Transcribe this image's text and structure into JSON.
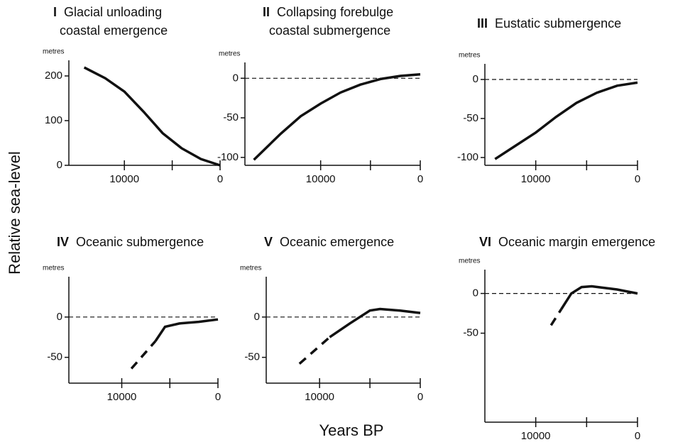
{
  "xlabel": "Years BP",
  "ylabel": "Relative sea-level",
  "chart_data": [
    {
      "type": "line",
      "numeral": "I",
      "title": [
        "Glacial unloading",
        "coastal emergence"
      ],
      "unit": "metres",
      "xlim": [
        15800,
        0
      ],
      "xticks": [
        10000,
        0
      ],
      "minor_xticks": [
        5000
      ],
      "ylim": [
        0,
        235
      ],
      "yticks": [
        0,
        100,
        200
      ],
      "zero_line": false,
      "segments": [
        {
          "style": "solid",
          "x": [
            14200,
            12000,
            10000,
            8000,
            6000,
            4000,
            2000,
            0
          ],
          "values": [
            219,
            195,
            165,
            120,
            72,
            38,
            14,
            0
          ]
        }
      ]
    },
    {
      "type": "line",
      "numeral": "II",
      "title": [
        "Collapsing forebulge",
        "coastal submergence"
      ],
      "unit": "metres",
      "xlim": [
        17600,
        0
      ],
      "xticks": [
        10000,
        0
      ],
      "minor_xticks": [
        5000
      ],
      "ylim": [
        -110,
        20
      ],
      "yticks": [
        0,
        -50,
        -100
      ],
      "zero_line": true,
      "segments": [
        {
          "style": "solid",
          "x": [
            16700,
            14000,
            12000,
            10000,
            8000,
            6000,
            4000,
            2000,
            0
          ],
          "values": [
            -103,
            -70,
            -48,
            -32,
            -18,
            -8,
            -1,
            3,
            5
          ]
        }
      ]
    },
    {
      "type": "line",
      "numeral": "III",
      "title": [
        "Eustatic submergence"
      ],
      "unit": "metres",
      "xlim": [
        15000,
        0
      ],
      "xticks": [
        10000,
        0
      ],
      "minor_xticks": [
        5000
      ],
      "ylim": [
        -110,
        20
      ],
      "yticks": [
        0,
        -50,
        -100
      ],
      "zero_line": true,
      "segments": [
        {
          "style": "solid",
          "x": [
            14000,
            12000,
            10000,
            8000,
            6000,
            4000,
            2000,
            0
          ],
          "values": [
            -102,
            -85,
            -68,
            -48,
            -30,
            -17,
            -8,
            -4
          ]
        }
      ]
    },
    {
      "type": "line",
      "numeral": "IV",
      "title": [
        "Oceanic submergence"
      ],
      "unit": "metres",
      "xlim": [
        15500,
        0
      ],
      "xticks": [
        10000,
        0
      ],
      "minor_xticks": [
        5000
      ],
      "ylim": [
        -82,
        50
      ],
      "yticks": [
        0,
        -50
      ],
      "zero_line": true,
      "segments": [
        {
          "style": "dashed",
          "x": [
            9000,
            6500
          ],
          "values": [
            -64,
            -30
          ]
        },
        {
          "style": "solid",
          "x": [
            6500,
            5500,
            4000,
            2000,
            0
          ],
          "values": [
            -30,
            -12,
            -8,
            -6,
            -3
          ]
        }
      ]
    },
    {
      "type": "line",
      "numeral": "V",
      "title": [
        "Oceanic emergence"
      ],
      "unit": "metres",
      "xlim": [
        15300,
        0
      ],
      "xticks": [
        10000,
        0
      ],
      "minor_xticks": [
        5000
      ],
      "ylim": [
        -82,
        50
      ],
      "yticks": [
        0,
        -50
      ],
      "zero_line": true,
      "segments": [
        {
          "style": "dashed",
          "x": [
            12000,
            9000
          ],
          "values": [
            -58,
            -25
          ]
        },
        {
          "style": "solid",
          "x": [
            9000,
            7000,
            5000,
            4000,
            2000,
            0
          ],
          "values": [
            -25,
            -8,
            8,
            10,
            8,
            5
          ]
        }
      ]
    },
    {
      "type": "line",
      "numeral": "VI",
      "title": [
        "Oceanic margin emergence"
      ],
      "unit": "metres",
      "xlim": [
        15000,
        0
      ],
      "xticks": [
        10000,
        0
      ],
      "minor_xticks": [
        5000
      ],
      "ylim": [
        -162,
        30
      ],
      "yticks": [
        0,
        -50
      ],
      "zero_line": true,
      "segments": [
        {
          "style": "dashed",
          "x": [
            8500,
            7500
          ],
          "values": [
            -40,
            -20
          ]
        },
        {
          "style": "solid",
          "x": [
            7500,
            6500,
            5500,
            4500,
            2000,
            0
          ],
          "values": [
            -20,
            0,
            8,
            9,
            5,
            0
          ]
        }
      ]
    }
  ]
}
